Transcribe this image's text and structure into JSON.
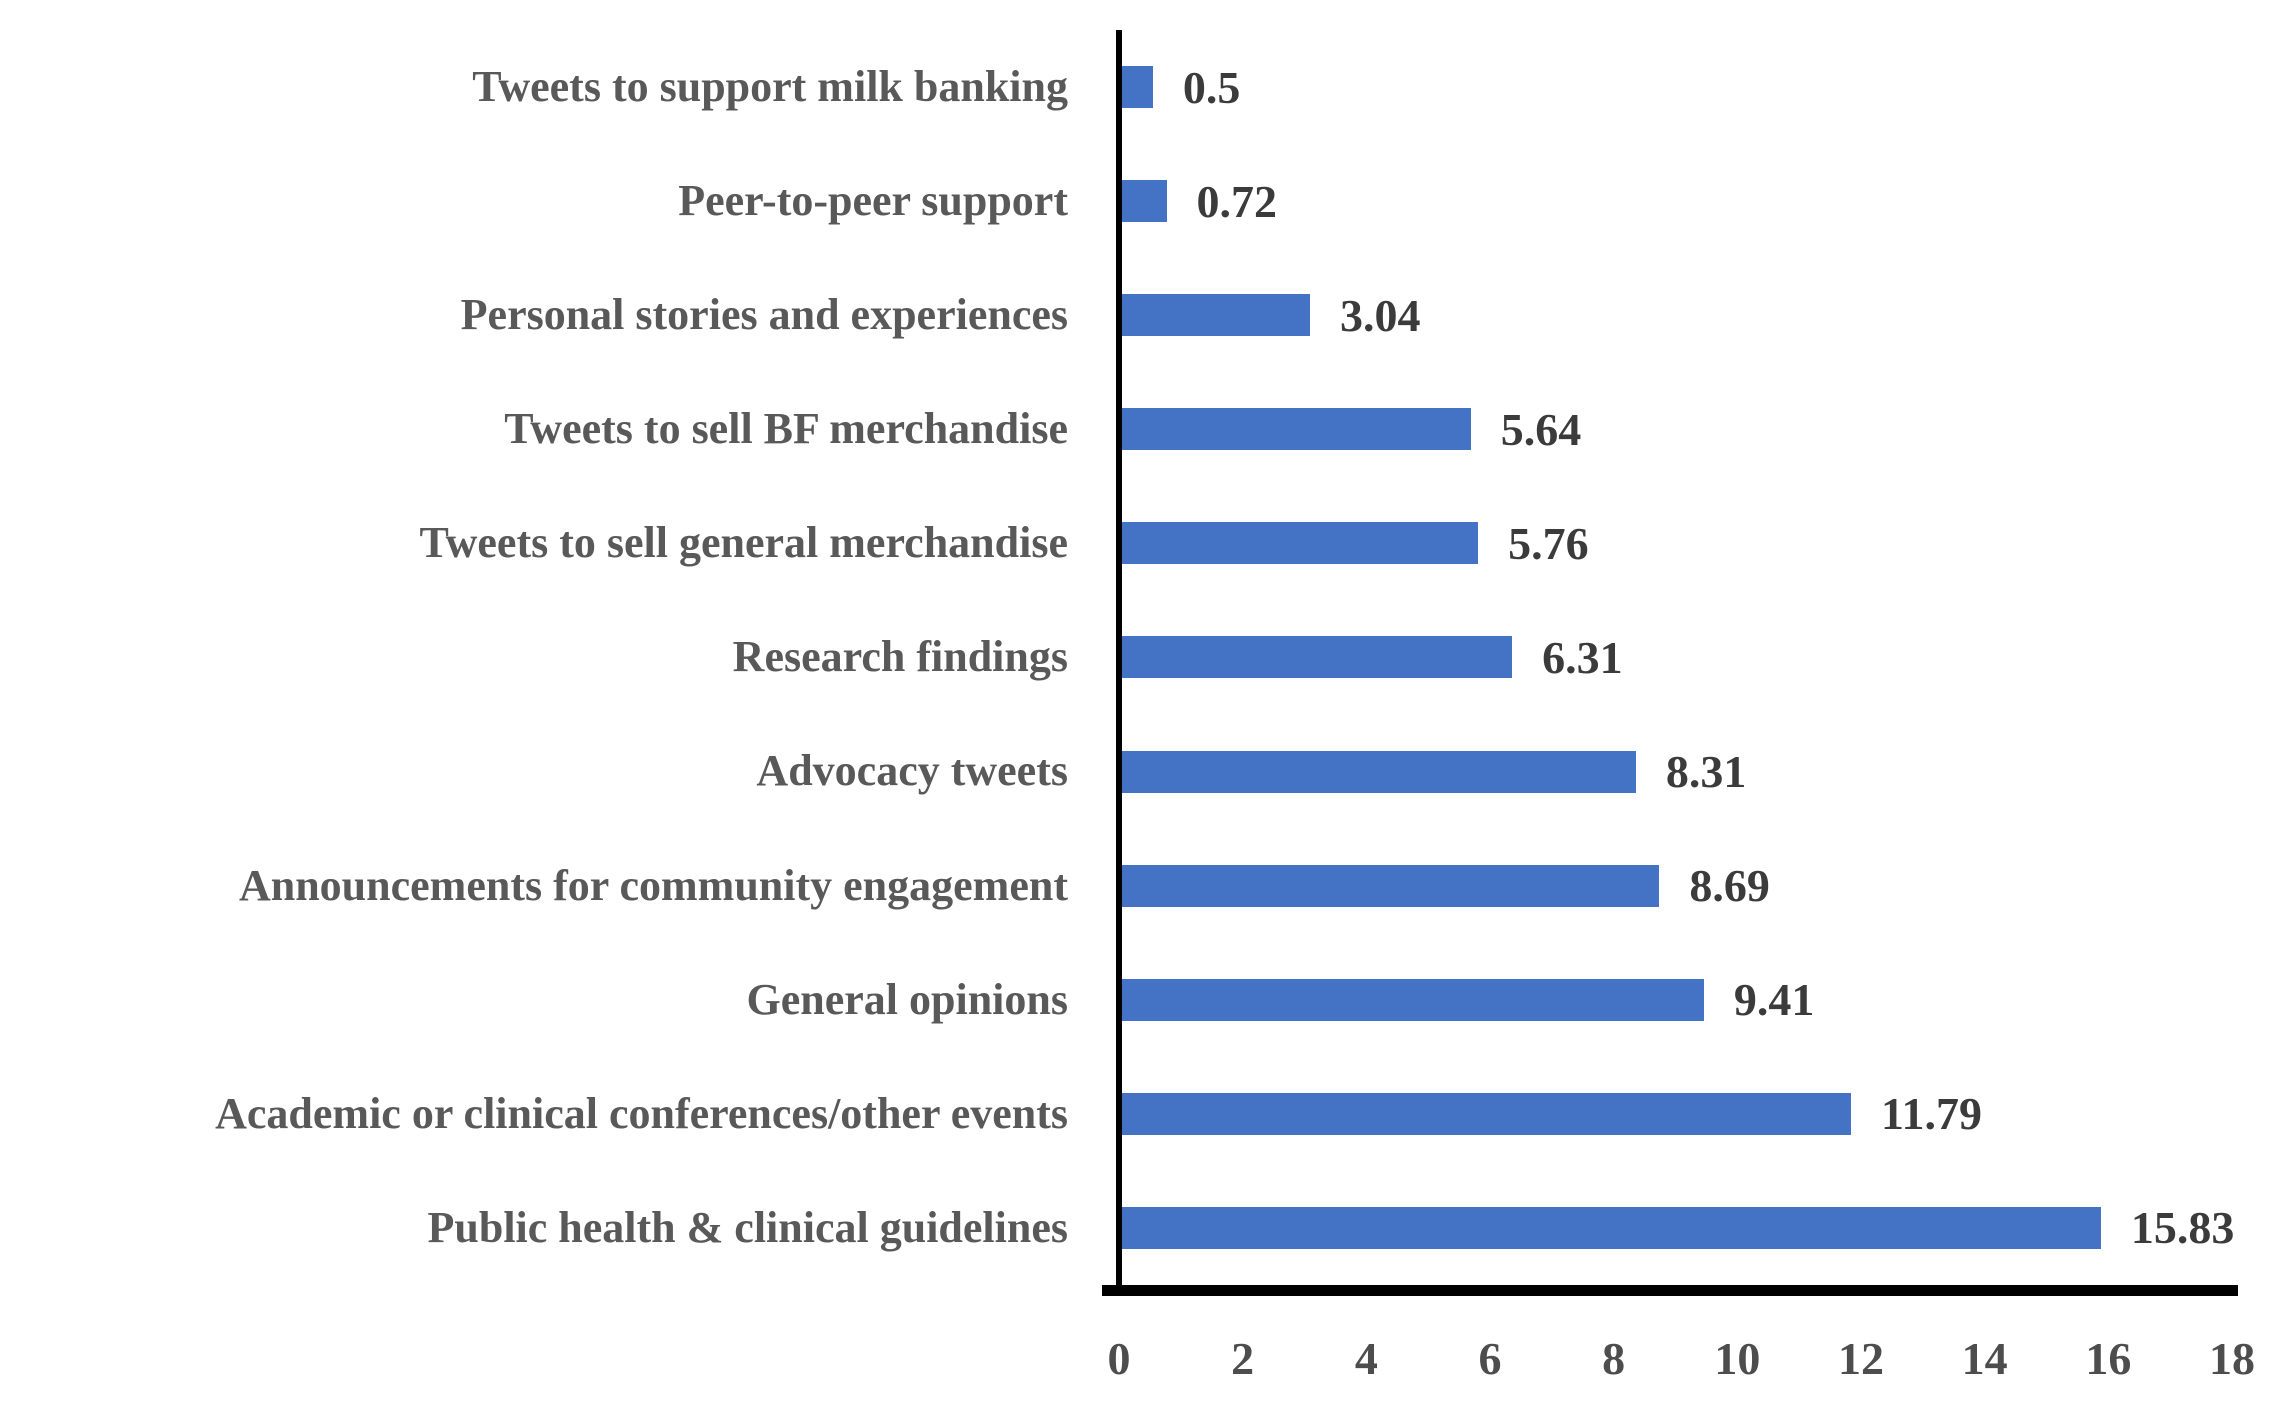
{
  "chart_data": {
    "type": "bar",
    "orientation": "horizontal",
    "title": "",
    "xlabel": "",
    "ylabel": "",
    "grid": false,
    "legend": false,
    "xlim": [
      0,
      18
    ],
    "x_ticks": [
      0,
      2,
      4,
      6,
      8,
      10,
      12,
      14,
      16,
      18
    ],
    "categories": [
      "Tweets to support milk banking",
      "Peer-to-peer support",
      "Personal stories and experiences",
      "Tweets to sell BF merchandise",
      "Tweets to sell general merchandise",
      "Research findings",
      "Advocacy tweets",
      "Announcements for community engagement",
      "General opinions",
      "Academic or clinical conferences/other events",
      "Public health & clinical guidelines"
    ],
    "values": [
      0.5,
      0.72,
      3.04,
      5.64,
      5.76,
      6.31,
      8.31,
      8.69,
      9.41,
      11.79,
      15.83
    ],
    "value_labels": [
      "0.5",
      "0.72",
      "3.04",
      "5.64",
      "5.76",
      "6.31",
      "8.31",
      "8.69",
      "9.41",
      "11.79",
      "15.83"
    ],
    "colors": {
      "bar": "#4472C4",
      "category_label": "#595959",
      "value_label": "#3B3B3B",
      "tick_label": "#4D4D4D",
      "axis": "#000000",
      "background": "#FFFFFF"
    }
  }
}
